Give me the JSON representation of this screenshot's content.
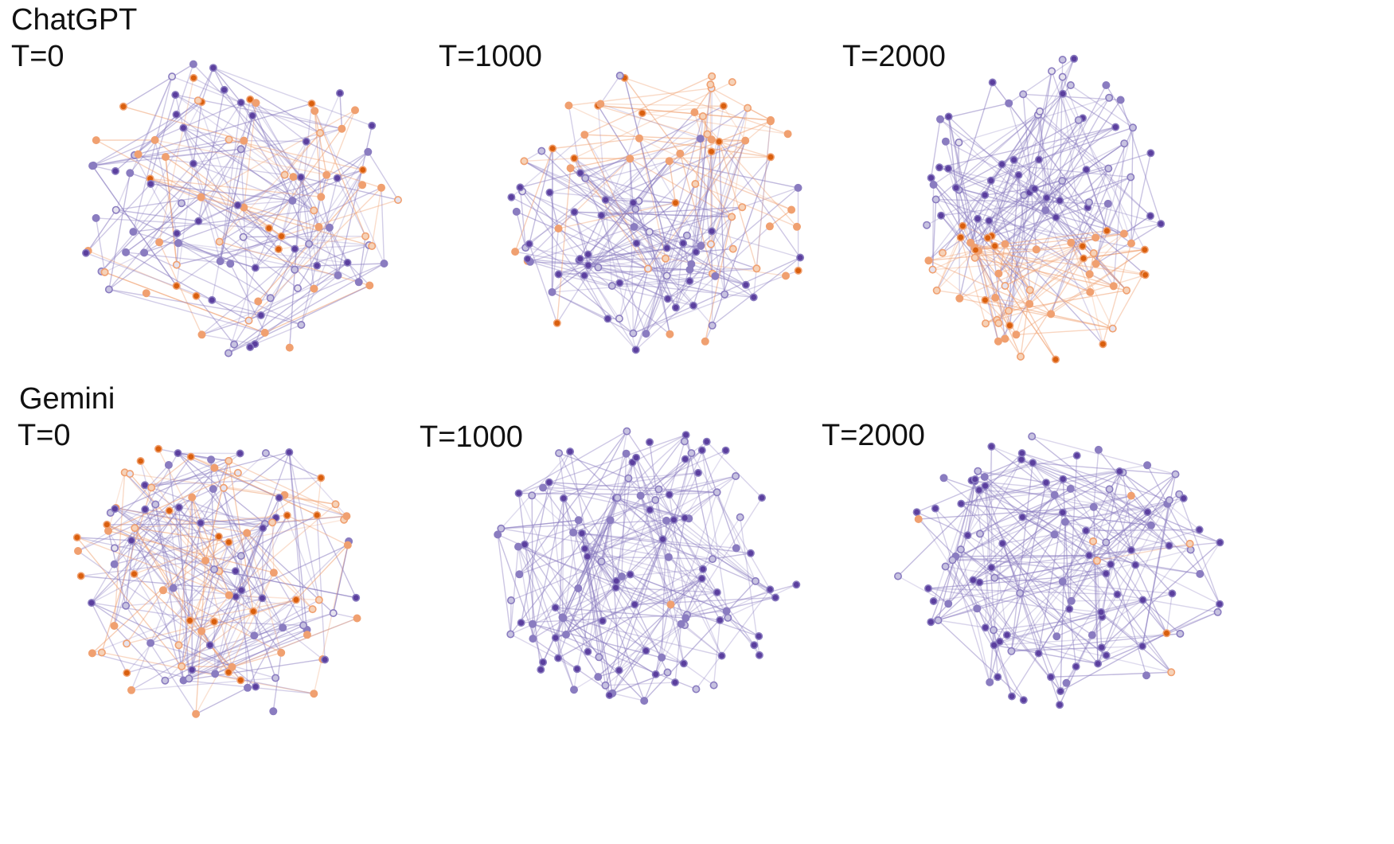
{
  "rows": [
    {
      "model": "ChatGPT",
      "panels": [
        {
          "label": "T=0",
          "orange_fraction": 0.48,
          "seed": 11
        },
        {
          "label": "T=1000",
          "orange_fraction": 0.45,
          "seed": 23
        },
        {
          "label": "T=2000",
          "orange_fraction": 0.4,
          "seed": 37
        }
      ]
    },
    {
      "model": "Gemini",
      "panels": [
        {
          "label": "T=0",
          "orange_fraction": 0.5,
          "seed": 41
        },
        {
          "label": "T=1000",
          "orange_fraction": 0.02,
          "seed": 53
        },
        {
          "label": "T=2000",
          "orange_fraction": 0.03,
          "seed": 67
        }
      ]
    }
  ],
  "colors": {
    "purple_strong": "#5b3f9e",
    "purple_mid": "#8a7cc0",
    "purple_light": "#c7c2e0",
    "orange_strong": "#d95f0e",
    "orange_mid": "#f0a070",
    "orange_light": "#f6d2b8",
    "neutral": "#e6e3ee"
  }
}
